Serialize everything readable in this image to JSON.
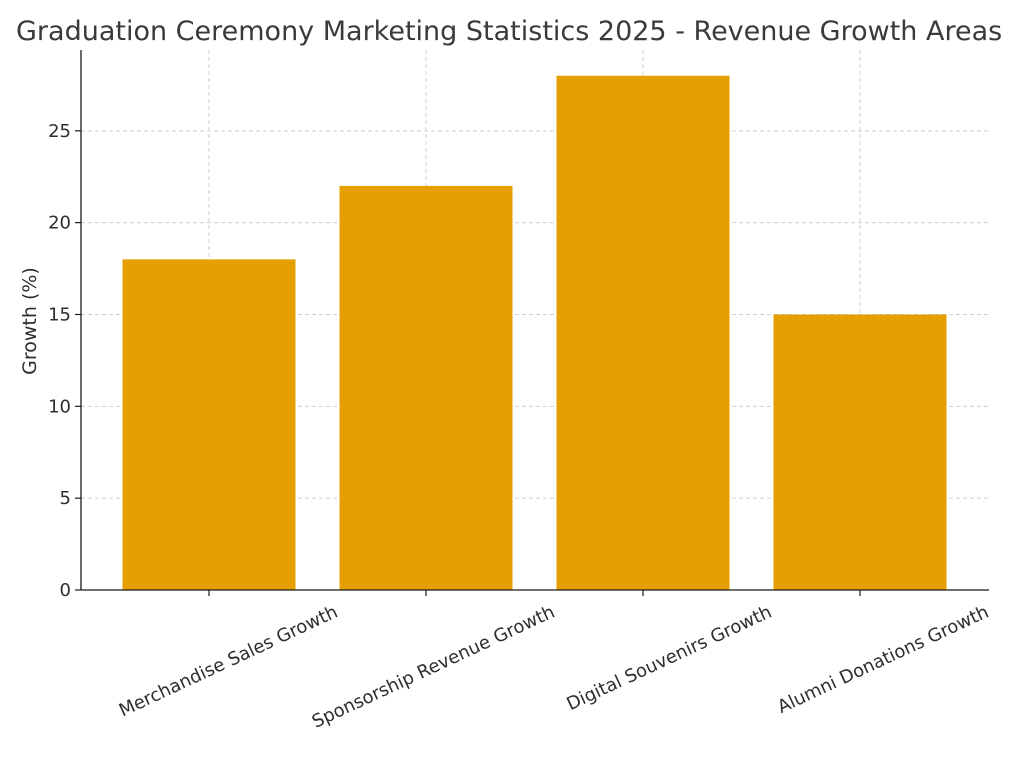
{
  "chart_data": {
    "type": "bar",
    "title": "Graduation Ceremony Marketing Statistics 2025 - Revenue Growth Areas",
    "xlabel": "",
    "ylabel": "Growth (%)",
    "categories": [
      "Merchandise Sales Growth",
      "Sponsorship Revenue Growth",
      "Digital Souvenirs Growth",
      "Alumni Donations Growth"
    ],
    "values": [
      18,
      22,
      28,
      15
    ],
    "ylim": [
      0,
      29.4
    ],
    "yticks": [
      "0",
      "5",
      "10",
      "15",
      "20",
      "25"
    ],
    "grid": true,
    "bar_color": "#E69F00"
  }
}
